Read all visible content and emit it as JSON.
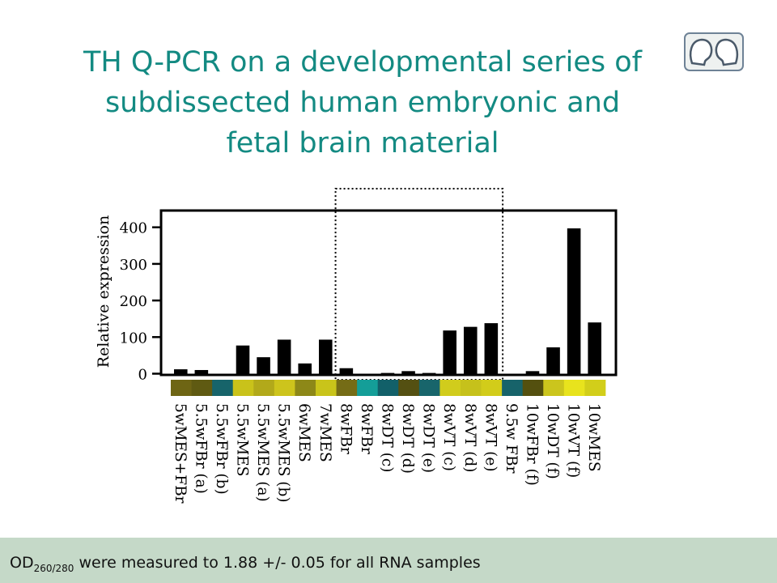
{
  "title": {
    "line1": "TH Q-PCR on a developmental series of",
    "line2": "subdissected human embryonic and",
    "line3": "fetal brain material"
  },
  "logo": {
    "icon": "brain-pair-icon"
  },
  "chart_data": {
    "type": "bar",
    "title": "",
    "xlabel": "",
    "ylabel": "Relative expression",
    "ylim": [
      0,
      450
    ],
    "yticks": [
      0,
      100,
      200,
      300,
      400
    ],
    "grid": false,
    "legend": "none",
    "categories": [
      "5wMES+FBr",
      "5.5wFBr (a)",
      "5.5wFBr (b)",
      "5.5wMES",
      "5.5wMES (a)",
      "5.5wMES (b)",
      "6wMES",
      "7wMES",
      "8wFBr",
      "8wFBr",
      "8wDT (c)",
      "8wDT (d)",
      "8wDT (e)",
      "8wVT (c)",
      "8wVT (d)",
      "8wVT (e)",
      "9.5w FBr",
      "10wFBr (f)",
      "10wDT (f)",
      "10wVT (f)",
      "10wMES"
    ],
    "values": [
      12,
      10,
      0,
      77,
      45,
      93,
      28,
      93,
      15,
      0,
      2,
      7,
      2,
      118,
      128,
      138,
      0,
      7,
      72,
      397,
      140
    ],
    "swatch_colors": [
      "#6e6514",
      "#5f5a12",
      "#17646a",
      "#c9c21a",
      "#b2a91a",
      "#cdc41c",
      "#8d8818",
      "#c9c41a",
      "#756c16",
      "#149e98",
      "#126069",
      "#545012",
      "#18656b",
      "#d1cc1c",
      "#c6c11b",
      "#d2cc1a",
      "#17636a",
      "#54500f",
      "#cbc51d",
      "#e8e31d",
      "#d2ce1a"
    ],
    "highlight": {
      "from": "8wFBr",
      "to": "8wVT (e)",
      "style": "dotted box"
    },
    "bar_color": "#000000"
  },
  "footnote": {
    "prefix": "OD",
    "subscript": "260/280",
    "text": " were measured to 1.88 +/- 0.05 for all RNA samples"
  }
}
